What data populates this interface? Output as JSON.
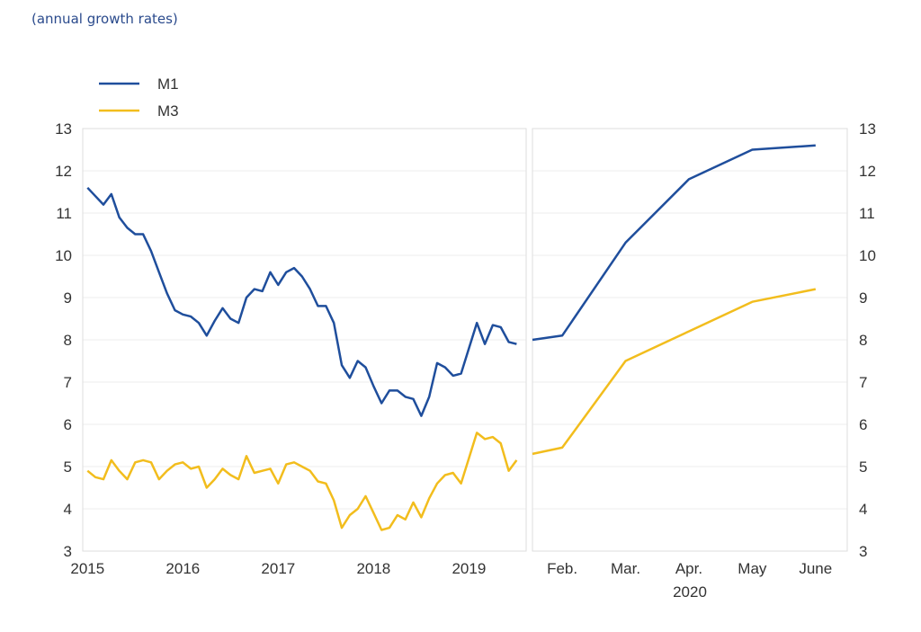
{
  "subtitle": "(annual growth rates)",
  "colors": {
    "M1": "#1f4e9c",
    "M3": "#f2bd1d",
    "grid": "#eeeeee",
    "frame": "#dddddd"
  },
  "chart_data": [
    {
      "type": "line",
      "title": "",
      "xlabel": "",
      "ylabel": "",
      "x_start": 2015,
      "x_step_months": 1,
      "xlim": [
        2014.95,
        2019.6
      ],
      "ylim": [
        3,
        13
      ],
      "yticks": [
        3,
        4,
        5,
        6,
        7,
        8,
        9,
        10,
        11,
        12,
        13
      ],
      "xticks": [
        {
          "value": 2015,
          "label": "2015"
        },
        {
          "value": 2016,
          "label": "2016"
        },
        {
          "value": 2017,
          "label": "2017"
        },
        {
          "value": 2018,
          "label": "2018"
        },
        {
          "value": 2019,
          "label": "2019"
        }
      ],
      "grid": true,
      "legend": "top-left",
      "series": [
        {
          "name": "M1",
          "values": [
            11.6,
            11.4,
            11.2,
            11.45,
            10.9,
            10.65,
            10.5,
            10.5,
            10.1,
            9.6,
            9.1,
            8.7,
            8.6,
            8.55,
            8.4,
            8.1,
            8.45,
            8.75,
            8.5,
            8.4,
            9.0,
            9.2,
            9.15,
            9.6,
            9.3,
            9.6,
            9.7,
            9.5,
            9.2,
            8.8,
            8.8,
            8.4,
            7.4,
            7.1,
            7.5,
            7.35,
            6.9,
            6.5,
            6.8,
            6.8,
            6.65,
            6.6,
            6.2,
            6.65,
            7.45,
            7.35,
            7.15,
            7.2,
            7.8,
            8.4,
            7.9,
            8.35,
            8.3,
            7.95,
            7.9
          ]
        },
        {
          "name": "M3",
          "values": [
            4.9,
            4.75,
            4.7,
            5.15,
            4.9,
            4.7,
            5.1,
            5.15,
            5.1,
            4.7,
            4.9,
            5.05,
            5.1,
            4.95,
            5.0,
            4.5,
            4.7,
            4.95,
            4.8,
            4.7,
            5.25,
            4.85,
            4.9,
            4.95,
            4.6,
            5.05,
            5.1,
            5.0,
            4.9,
            4.65,
            4.6,
            4.2,
            3.55,
            3.85,
            4.0,
            4.3,
            3.9,
            3.5,
            3.55,
            3.85,
            3.75,
            4.15,
            3.8,
            4.25,
            4.6,
            4.8,
            4.85,
            4.6,
            5.2,
            5.8,
            5.65,
            5.7,
            5.55,
            4.9,
            5.15
          ]
        }
      ]
    },
    {
      "type": "line",
      "title": "",
      "year_label": "2020",
      "x": [
        1,
        2,
        3,
        4,
        5,
        6
      ],
      "xlim": [
        1.53,
        6.5
      ],
      "ylim": [
        3,
        13
      ],
      "yticks": [
        3,
        4,
        5,
        6,
        7,
        8,
        9,
        10,
        11,
        12,
        13
      ],
      "xticks": [
        {
          "value": 2,
          "label": "Feb."
        },
        {
          "value": 3,
          "label": "Mar."
        },
        {
          "value": 4,
          "label": "Apr."
        },
        {
          "value": 5,
          "label": "May"
        },
        {
          "value": 6,
          "label": "June"
        }
      ],
      "grid": true,
      "series": [
        {
          "name": "M1",
          "values": [
            8.0,
            8.1,
            10.3,
            11.8,
            12.5,
            12.6
          ]
        },
        {
          "name": "M3",
          "values": [
            5.3,
            5.45,
            7.5,
            8.2,
            8.9,
            9.2
          ]
        }
      ]
    }
  ]
}
